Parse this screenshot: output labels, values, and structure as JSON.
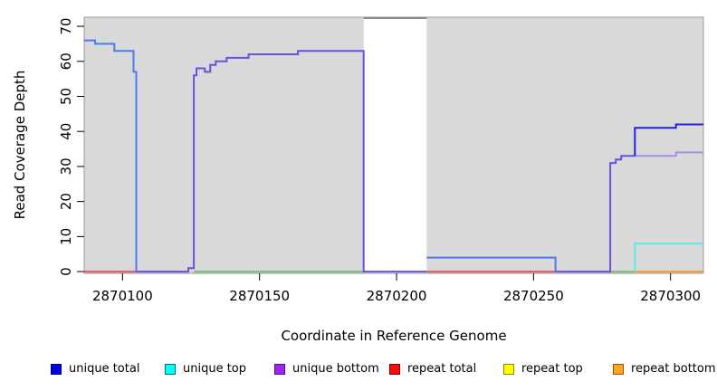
{
  "chart_data": {
    "type": "line",
    "title": "",
    "xlabel": "Coordinate in Reference Genome",
    "ylabel": "Read Coverage Depth",
    "xlim": [
      2870086,
      2870312
    ],
    "ylim": [
      -0.5,
      72.6
    ],
    "x_ticks": [
      2870100,
      2870150,
      2870200,
      2870250,
      2870300
    ],
    "y_ticks": [
      0,
      10,
      20,
      30,
      40,
      50,
      60,
      70
    ],
    "grid": false,
    "legend_position": "bottom",
    "panel_bg": "#d9d9d9",
    "panel_border": "#9a9a9a",
    "gap_regions": [
      {
        "start": 2870188,
        "end": 2870211,
        "fill": "#ffffff",
        "top_border": "#8a8a8a"
      }
    ],
    "series": [
      {
        "name": "repeat-total-baseline-left",
        "color": "#e2596a",
        "steps": [
          [
            2870086,
            0
          ]
        ],
        "end": 2870105
      },
      {
        "name": "green-baseline-mid",
        "color": "#77c47c",
        "steps": [
          [
            2870126,
            0
          ]
        ],
        "end": 2870188
      },
      {
        "name": "repeat-total-baseline-mid",
        "color": "#e2596a",
        "steps": [
          [
            2870211,
            0
          ]
        ],
        "end": 2870258
      },
      {
        "name": "green-baseline-right",
        "color": "#77c47c",
        "steps": [
          [
            2870278,
            0
          ]
        ],
        "end": 2870287
      },
      {
        "name": "repeat-bottom-baseline",
        "color": "#ff9d20",
        "steps": [
          [
            2870287,
            0
          ]
        ],
        "end": 2870312
      },
      {
        "name": "unique-total-left",
        "color": "#4e79f0",
        "steps": [
          [
            2870086,
            66
          ],
          [
            2870090,
            65
          ],
          [
            2870097,
            63
          ],
          [
            2870104,
            57
          ],
          [
            2870105,
            0
          ]
        ],
        "end": 2870105
      },
      {
        "name": "unique-bottom-mid",
        "color": "#6b4fe2",
        "steps": [
          [
            2870105,
            0
          ],
          [
            2870124,
            1
          ],
          [
            2870126,
            56
          ],
          [
            2870127,
            58
          ],
          [
            2870130,
            57
          ],
          [
            2870132,
            59
          ],
          [
            2870134,
            60
          ],
          [
            2870138,
            61
          ],
          [
            2870146,
            62
          ],
          [
            2870164,
            63
          ],
          [
            2870188,
            0
          ]
        ],
        "end": 2870211
      },
      {
        "name": "unique-total-mid",
        "color": "#4e79f0",
        "steps": [
          [
            2870211,
            4
          ],
          [
            2870258,
            0
          ]
        ],
        "end": 2870258
      },
      {
        "name": "unique-bottom-right-rise",
        "color": "#6b4fe2",
        "steps": [
          [
            2870258,
            0
          ],
          [
            2870278,
            31
          ],
          [
            2870280,
            32
          ],
          [
            2870282,
            33
          ]
        ],
        "end": 2870287
      },
      {
        "name": "unique-bottom-right",
        "color": "#ac8ce8",
        "steps": [
          [
            2870287,
            33
          ],
          [
            2870302,
            34
          ]
        ],
        "end": 2870312
      },
      {
        "name": "unique-top-right",
        "color": "#5ce6e6",
        "steps": [
          [
            2870287,
            0
          ],
          [
            2870287,
            8
          ]
        ],
        "end": 2870312
      },
      {
        "name": "unique-total-right",
        "color": "#2121db",
        "steps": [
          [
            2870287,
            33
          ],
          [
            2870287,
            41
          ],
          [
            2870302,
            42
          ]
        ],
        "end": 2870312
      }
    ]
  },
  "legend": {
    "items": [
      {
        "label": "unique total",
        "fill": "#0000ee",
        "border": "#000066"
      },
      {
        "label": "unique top",
        "fill": "#00ffff",
        "border": "#006b6b"
      },
      {
        "label": "unique bottom",
        "fill": "#a125f0",
        "border": "#5a0d8a"
      },
      {
        "label": "repeat total",
        "fill": "#fa0a0a",
        "border": "#7a0000"
      },
      {
        "label": "repeat top",
        "fill": "#ffff00",
        "border": "#8b8b00"
      },
      {
        "label": "repeat bottom",
        "fill": "#ffa51e",
        "border": "#8b5a00"
      }
    ]
  }
}
